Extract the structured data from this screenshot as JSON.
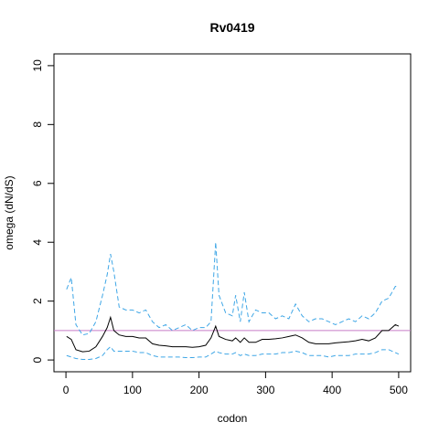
{
  "chart_data": {
    "type": "line",
    "title": "Rv0419",
    "x_label": "codon",
    "y_label": "omega (dN/dS)",
    "x": [
      1,
      8,
      15,
      25,
      35,
      45,
      55,
      62,
      67,
      72,
      80,
      90,
      100,
      110,
      120,
      130,
      140,
      150,
      160,
      170,
      180,
      190,
      200,
      210,
      218,
      225,
      230,
      240,
      250,
      255,
      262,
      268,
      275,
      285,
      295,
      305,
      315,
      325,
      335,
      345,
      355,
      365,
      375,
      385,
      395,
      405,
      415,
      425,
      435,
      445,
      455,
      465,
      475,
      485,
      495,
      500
    ],
    "series": [
      {
        "color": "#3ea6e6",
        "linestyle": "dashed",
        "values": [
          2.4,
          2.8,
          1.2,
          0.85,
          0.9,
          1.3,
          2.2,
          2.9,
          3.6,
          3.0,
          1.8,
          1.7,
          1.7,
          1.6,
          1.7,
          1.3,
          1.1,
          1.2,
          1.0,
          1.1,
          1.2,
          1.0,
          1.1,
          1.1,
          1.3,
          4.0,
          2.2,
          1.6,
          1.5,
          2.2,
          1.3,
          2.3,
          1.3,
          1.7,
          1.6,
          1.6,
          1.4,
          1.5,
          1.4,
          1.9,
          1.5,
          1.3,
          1.4,
          1.4,
          1.3,
          1.2,
          1.3,
          1.4,
          1.3,
          1.5,
          1.4,
          1.6,
          2.0,
          2.1,
          2.5,
          2.5
        ]
      },
      {
        "color": "#000000",
        "linestyle": "solid",
        "values": [
          0.8,
          0.7,
          0.35,
          0.28,
          0.3,
          0.45,
          0.8,
          1.1,
          1.45,
          1.0,
          0.85,
          0.8,
          0.8,
          0.75,
          0.75,
          0.55,
          0.5,
          0.48,
          0.45,
          0.45,
          0.45,
          0.43,
          0.45,
          0.5,
          0.75,
          1.15,
          0.8,
          0.7,
          0.65,
          0.75,
          0.6,
          0.75,
          0.6,
          0.6,
          0.7,
          0.7,
          0.72,
          0.75,
          0.8,
          0.85,
          0.75,
          0.6,
          0.55,
          0.55,
          0.55,
          0.58,
          0.6,
          0.62,
          0.65,
          0.7,
          0.65,
          0.75,
          1.0,
          1.0,
          1.2,
          1.15
        ]
      },
      {
        "color": "#3ea6e6",
        "linestyle": "dashed",
        "values": [
          0.15,
          0.1,
          0.05,
          0.02,
          0.02,
          0.05,
          0.15,
          0.35,
          0.45,
          0.3,
          0.3,
          0.3,
          0.3,
          0.25,
          0.25,
          0.15,
          0.1,
          0.1,
          0.1,
          0.1,
          0.08,
          0.08,
          0.1,
          0.1,
          0.2,
          0.3,
          0.25,
          0.2,
          0.2,
          0.25,
          0.15,
          0.2,
          0.15,
          0.15,
          0.2,
          0.2,
          0.2,
          0.25,
          0.25,
          0.3,
          0.25,
          0.15,
          0.15,
          0.15,
          0.1,
          0.15,
          0.15,
          0.15,
          0.2,
          0.2,
          0.2,
          0.25,
          0.35,
          0.35,
          0.25,
          0.2
        ]
      }
    ],
    "hline": 1,
    "hline_color": "#c77cc7",
    "xlim": [
      -18,
      518
    ],
    "ylim": [
      -0.4,
      10.4
    ],
    "xticks": [
      0,
      100,
      200,
      300,
      400,
      500
    ],
    "yticks": [
      0,
      2,
      4,
      6,
      8,
      10
    ]
  }
}
